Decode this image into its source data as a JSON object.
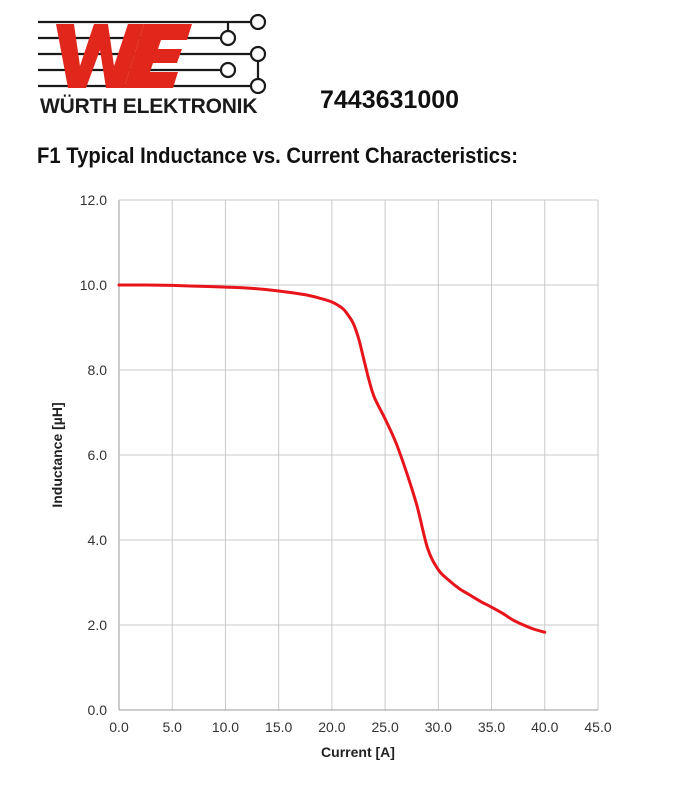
{
  "brand": {
    "name": "WÜRTH ELEKTRONIK",
    "logo_icon": "we-logo-icon",
    "logo_color": "#e1261c"
  },
  "part_number": "7443631000",
  "title": "F1 Typical Inductance vs. Current Characteristics:",
  "chart_data": {
    "type": "line",
    "title": "F1 Typical Inductance vs. Current Characteristics:",
    "xlabel": "Current [A]",
    "ylabel": "Inductance [µH]",
    "xlim": [
      0,
      45
    ],
    "ylim": [
      0,
      12
    ],
    "x_ticks": [
      "0.0",
      "5.0",
      "10.0",
      "15.0",
      "20.0",
      "25.0",
      "30.0",
      "35.0",
      "40.0",
      "45.0"
    ],
    "y_ticks": [
      "0.0",
      "2.0",
      "4.0",
      "6.0",
      "8.0",
      "10.0",
      "12.0"
    ],
    "grid": true,
    "line_color": "#e8141c",
    "series": [
      {
        "x": [
          0,
          2.5,
          5,
          7.5,
          10,
          12.5,
          15,
          17.5,
          19,
          20,
          21,
          21.5,
          22,
          22.5,
          23,
          23.5,
          24,
          25,
          26,
          27,
          28,
          29,
          30,
          31,
          32,
          33,
          34,
          35,
          36,
          37,
          38,
          39,
          40
        ],
        "y": [
          10.0,
          10.0,
          9.99,
          9.97,
          9.95,
          9.92,
          9.86,
          9.77,
          9.68,
          9.6,
          9.45,
          9.3,
          9.1,
          8.75,
          8.25,
          7.75,
          7.35,
          6.85,
          6.3,
          5.6,
          4.8,
          3.8,
          3.3,
          3.05,
          2.85,
          2.7,
          2.55,
          2.42,
          2.28,
          2.12,
          2.0,
          1.9,
          1.83
        ]
      }
    ]
  }
}
